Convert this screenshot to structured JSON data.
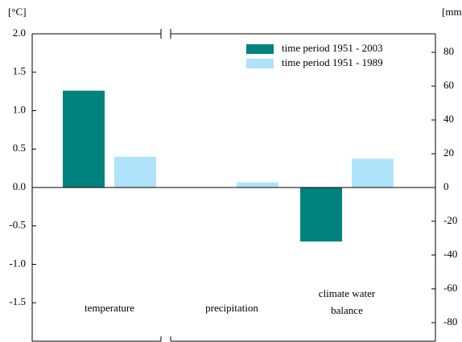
{
  "chart_data": {
    "type": "bar",
    "y_axis_label": "[°C]",
    "y2_axis_label": "[mm]",
    "categories": [
      "temperature",
      "precipitation",
      "climate water balance"
    ],
    "category_axes": [
      "y",
      "y2",
      "y2"
    ],
    "series": [
      {
        "name": "time period 1951 - 2003",
        "color": "#00827f",
        "values": [
          1.26,
          0,
          -32
        ]
      },
      {
        "name": "time period 1951 - 1989",
        "color": "#aee3fb",
        "values": [
          0.4,
          3,
          17
        ]
      }
    ],
    "ylim": [
      -2.0,
      2.0
    ],
    "yticks": [
      {
        "value": 2,
        "label": "2.0"
      },
      1.5,
      {
        "value": 1,
        "label": "1.0"
      },
      0.5,
      {
        "value": 0,
        "label": "0.0"
      },
      -0.5,
      {
        "value": -1,
        "label": "-1.0"
      },
      -1.5
    ],
    "y2lim": [
      -91,
      91
    ],
    "y2ticks": [
      80,
      60,
      40,
      20,
      0,
      -20,
      -40,
      -60,
      -80
    ],
    "legend": "upper right"
  }
}
